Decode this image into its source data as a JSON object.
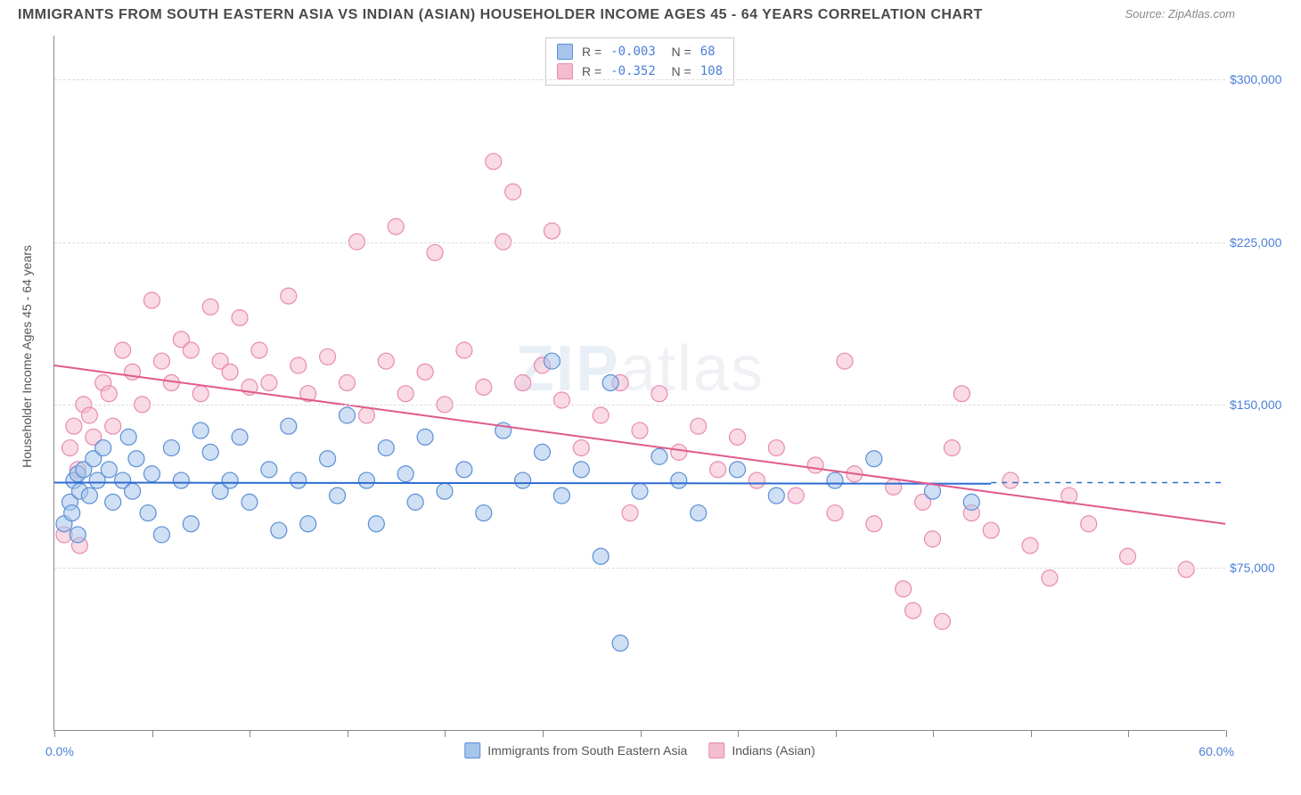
{
  "title": "IMMIGRANTS FROM SOUTH EASTERN ASIA VS INDIAN (ASIAN) HOUSEHOLDER INCOME AGES 45 - 64 YEARS CORRELATION CHART",
  "source": "Source: ZipAtlas.com",
  "ylabel": "Householder Income Ages 45 - 64 years",
  "watermark_a": "ZIP",
  "watermark_b": "atlas",
  "chart": {
    "type": "scatter",
    "xlim": [
      0,
      60
    ],
    "ylim": [
      0,
      320000
    ],
    "x_min_label": "0.0%",
    "x_max_label": "60.0%",
    "yticks": [
      75000,
      150000,
      225000,
      300000
    ],
    "ytick_labels": [
      "$75,000",
      "$150,000",
      "$225,000",
      "$300,000"
    ],
    "xtick_positions": [
      0,
      5,
      10,
      15,
      20,
      25,
      30,
      35,
      40,
      45,
      50,
      55,
      60
    ],
    "background_color": "#ffffff",
    "grid_color": "#dcdcdc",
    "series": [
      {
        "name": "Immigrants from South Eastern Asia",
        "fill": "#a7c4eb",
        "stroke": "#5b8fd6",
        "fill_opacity": 0.55,
        "R": "-0.003",
        "N": "68",
        "trend": {
          "y_start": 114000,
          "y_end": 113500,
          "x_start": 0,
          "x_end": 48,
          "color": "#2d6cd0",
          "width": 2
        },
        "points": [
          [
            0.5,
            95000
          ],
          [
            0.8,
            105000
          ],
          [
            0.9,
            100000
          ],
          [
            1.0,
            115000
          ],
          [
            1.2,
            118000
          ],
          [
            1.2,
            90000
          ],
          [
            1.3,
            110000
          ],
          [
            1.5,
            120000
          ],
          [
            1.8,
            108000
          ],
          [
            2.0,
            125000
          ],
          [
            2.2,
            115000
          ],
          [
            2.5,
            130000
          ],
          [
            2.8,
            120000
          ],
          [
            3.0,
            105000
          ],
          [
            3.5,
            115000
          ],
          [
            3.8,
            135000
          ],
          [
            4.0,
            110000
          ],
          [
            4.2,
            125000
          ],
          [
            4.8,
            100000
          ],
          [
            5.0,
            118000
          ],
          [
            5.5,
            90000
          ],
          [
            6.0,
            130000
          ],
          [
            6.5,
            115000
          ],
          [
            7.0,
            95000
          ],
          [
            7.5,
            138000
          ],
          [
            8.0,
            128000
          ],
          [
            8.5,
            110000
          ],
          [
            9.0,
            115000
          ],
          [
            9.5,
            135000
          ],
          [
            10.0,
            105000
          ],
          [
            11.0,
            120000
          ],
          [
            11.5,
            92000
          ],
          [
            12.0,
            140000
          ],
          [
            12.5,
            115000
          ],
          [
            13.0,
            95000
          ],
          [
            14.0,
            125000
          ],
          [
            14.5,
            108000
          ],
          [
            15.0,
            145000
          ],
          [
            16.0,
            115000
          ],
          [
            16.5,
            95000
          ],
          [
            17.0,
            130000
          ],
          [
            18.0,
            118000
          ],
          [
            18.5,
            105000
          ],
          [
            19.0,
            135000
          ],
          [
            20.0,
            110000
          ],
          [
            21.0,
            120000
          ],
          [
            22.0,
            100000
          ],
          [
            23.0,
            138000
          ],
          [
            24.0,
            115000
          ],
          [
            25.0,
            128000
          ],
          [
            25.5,
            170000
          ],
          [
            26.0,
            108000
          ],
          [
            27.0,
            120000
          ],
          [
            28.0,
            80000
          ],
          [
            28.5,
            160000
          ],
          [
            29.0,
            40000
          ],
          [
            30.0,
            110000
          ],
          [
            31.0,
            126000
          ],
          [
            32.0,
            115000
          ],
          [
            33.0,
            100000
          ],
          [
            35.0,
            120000
          ],
          [
            37.0,
            108000
          ],
          [
            40.0,
            115000
          ],
          [
            42.0,
            125000
          ],
          [
            45.0,
            110000
          ],
          [
            47.0,
            105000
          ]
        ]
      },
      {
        "name": "Indians (Asian)",
        "fill": "#f4bccf",
        "stroke": "#e88bb0",
        "fill_opacity": 0.55,
        "R": "-0.352",
        "N": "108",
        "trend": {
          "y_start": 168000,
          "y_end": 95000,
          "x_start": 0,
          "x_end": 60,
          "color": "#e05a8c",
          "width": 2
        },
        "points": [
          [
            0.5,
            90000
          ],
          [
            0.8,
            130000
          ],
          [
            1.0,
            140000
          ],
          [
            1.2,
            120000
          ],
          [
            1.3,
            85000
          ],
          [
            1.5,
            150000
          ],
          [
            1.8,
            145000
          ],
          [
            2.0,
            135000
          ],
          [
            2.5,
            160000
          ],
          [
            2.8,
            155000
          ],
          [
            3.0,
            140000
          ],
          [
            3.5,
            175000
          ],
          [
            4.0,
            165000
          ],
          [
            4.5,
            150000
          ],
          [
            5.0,
            198000
          ],
          [
            5.5,
            170000
          ],
          [
            6.0,
            160000
          ],
          [
            6.5,
            180000
          ],
          [
            7.0,
            175000
          ],
          [
            7.5,
            155000
          ],
          [
            8.0,
            195000
          ],
          [
            8.5,
            170000
          ],
          [
            9.0,
            165000
          ],
          [
            9.5,
            190000
          ],
          [
            10.0,
            158000
          ],
          [
            10.5,
            175000
          ],
          [
            11.0,
            160000
          ],
          [
            12.0,
            200000
          ],
          [
            12.5,
            168000
          ],
          [
            13.0,
            155000
          ],
          [
            14.0,
            172000
          ],
          [
            15.0,
            160000
          ],
          [
            15.5,
            225000
          ],
          [
            16.0,
            145000
          ],
          [
            17.0,
            170000
          ],
          [
            17.5,
            232000
          ],
          [
            18.0,
            155000
          ],
          [
            19.0,
            165000
          ],
          [
            19.5,
            220000
          ],
          [
            20.0,
            150000
          ],
          [
            21.0,
            175000
          ],
          [
            22.0,
            158000
          ],
          [
            22.5,
            262000
          ],
          [
            23.0,
            225000
          ],
          [
            23.5,
            248000
          ],
          [
            24.0,
            160000
          ],
          [
            25.0,
            168000
          ],
          [
            25.5,
            230000
          ],
          [
            26.0,
            152000
          ],
          [
            27.0,
            130000
          ],
          [
            28.0,
            145000
          ],
          [
            29.0,
            160000
          ],
          [
            29.5,
            100000
          ],
          [
            30.0,
            138000
          ],
          [
            31.0,
            155000
          ],
          [
            32.0,
            128000
          ],
          [
            33.0,
            140000
          ],
          [
            34.0,
            120000
          ],
          [
            35.0,
            135000
          ],
          [
            36.0,
            115000
          ],
          [
            37.0,
            130000
          ],
          [
            38.0,
            108000
          ],
          [
            39.0,
            122000
          ],
          [
            40.0,
            100000
          ],
          [
            40.5,
            170000
          ],
          [
            41.0,
            118000
          ],
          [
            42.0,
            95000
          ],
          [
            43.0,
            112000
          ],
          [
            43.5,
            65000
          ],
          [
            44.0,
            55000
          ],
          [
            44.5,
            105000
          ],
          [
            45.0,
            88000
          ],
          [
            45.5,
            50000
          ],
          [
            46.0,
            130000
          ],
          [
            46.5,
            155000
          ],
          [
            47.0,
            100000
          ],
          [
            48.0,
            92000
          ],
          [
            49.0,
            115000
          ],
          [
            50.0,
            85000
          ],
          [
            51.0,
            70000
          ],
          [
            52.0,
            108000
          ],
          [
            53.0,
            95000
          ],
          [
            55.0,
            80000
          ],
          [
            58.0,
            74000
          ]
        ]
      }
    ],
    "dashed_reference": {
      "y": 114000,
      "x_start": 48,
      "x_end": 60,
      "color": "#2d6cd0"
    }
  }
}
